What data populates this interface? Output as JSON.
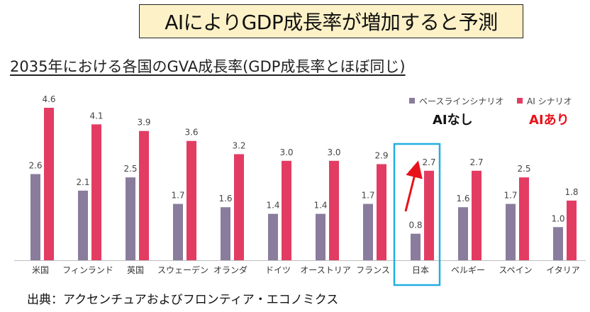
{
  "header": {
    "title": "AIによりGDP成長率が増加すると予測",
    "subtitle": "2035年における各国のGVA成長率(GDP成長率とほぼ同じ)",
    "source": "出典：アクセンチュアおよびフロンティア・エコノミクス"
  },
  "annotations": {
    "ai_none": "AIなし",
    "ai_with": "AIあり"
  },
  "colors": {
    "baseline": "#8a7c9c",
    "ai": "#e33c63",
    "highlight_box": "#22aee0",
    "arrow": "#e8121b",
    "ai_with_text": "#e8121b"
  },
  "chart_data": {
    "type": "bar",
    "categories": [
      "米国",
      "フィンランド",
      "英国",
      "スウェーデン",
      "オランダ",
      "ドイツ",
      "オーストリア",
      "フランス",
      "日本",
      "ベルギー",
      "スペイン",
      "イタリア"
    ],
    "series": [
      {
        "name": "ベースラインシナリオ",
        "values": [
          2.6,
          2.1,
          2.5,
          1.7,
          1.6,
          1.4,
          1.4,
          1.7,
          0.8,
          1.6,
          1.7,
          1.0
        ]
      },
      {
        "name": "AI シナリオ",
        "values": [
          4.6,
          4.1,
          3.9,
          3.6,
          3.2,
          3.0,
          3.0,
          2.9,
          2.7,
          2.7,
          2.5,
          1.8
        ]
      }
    ],
    "ylim": [
      0,
      4.6
    ],
    "legend": "top-right",
    "highlight_category": "日本",
    "grid": false
  }
}
